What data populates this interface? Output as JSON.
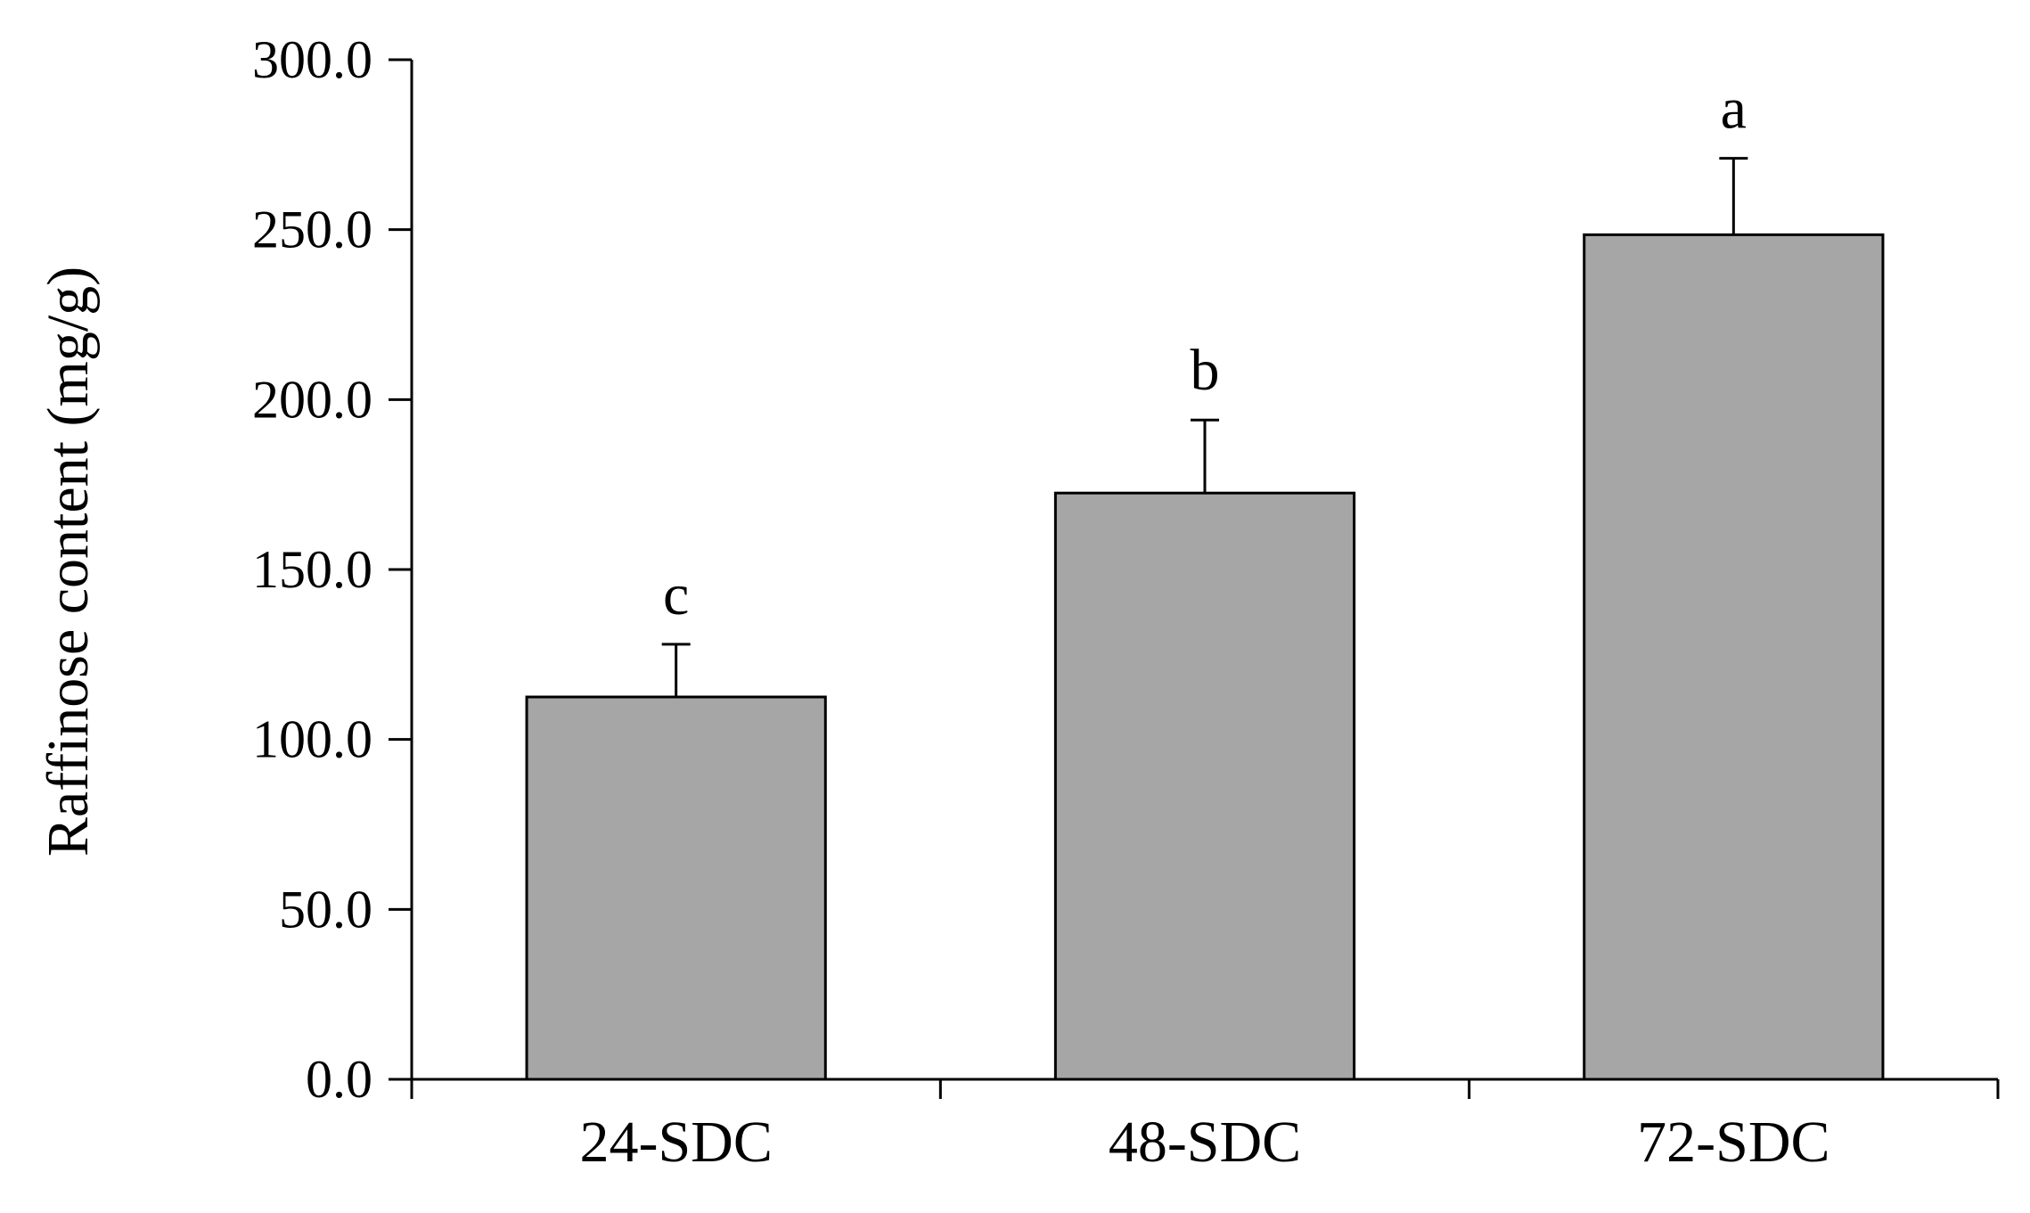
{
  "chart_data": {
    "type": "bar",
    "title": "",
    "xlabel": "",
    "ylabel": "Raffinose content (mg/g)",
    "categories": [
      "24-SDC",
      "48-SDC",
      "72-SDC"
    ],
    "values": [
      112.5,
      172.5,
      248.5
    ],
    "error_bars": [
      15.5,
      21.5,
      22.5
    ],
    "significance_labels": [
      "c",
      "b",
      "a"
    ],
    "ylim": [
      0,
      300
    ],
    "yticks": [
      0,
      50,
      100,
      150,
      200,
      250,
      300
    ],
    "ytick_labels": [
      "0.0",
      "50.0",
      "100.0",
      "150.0",
      "200.0",
      "250.0",
      "300.0"
    ],
    "grid": false,
    "legend": "none",
    "bar_color": "#a6a6a6",
    "edge_color": "#000000"
  }
}
